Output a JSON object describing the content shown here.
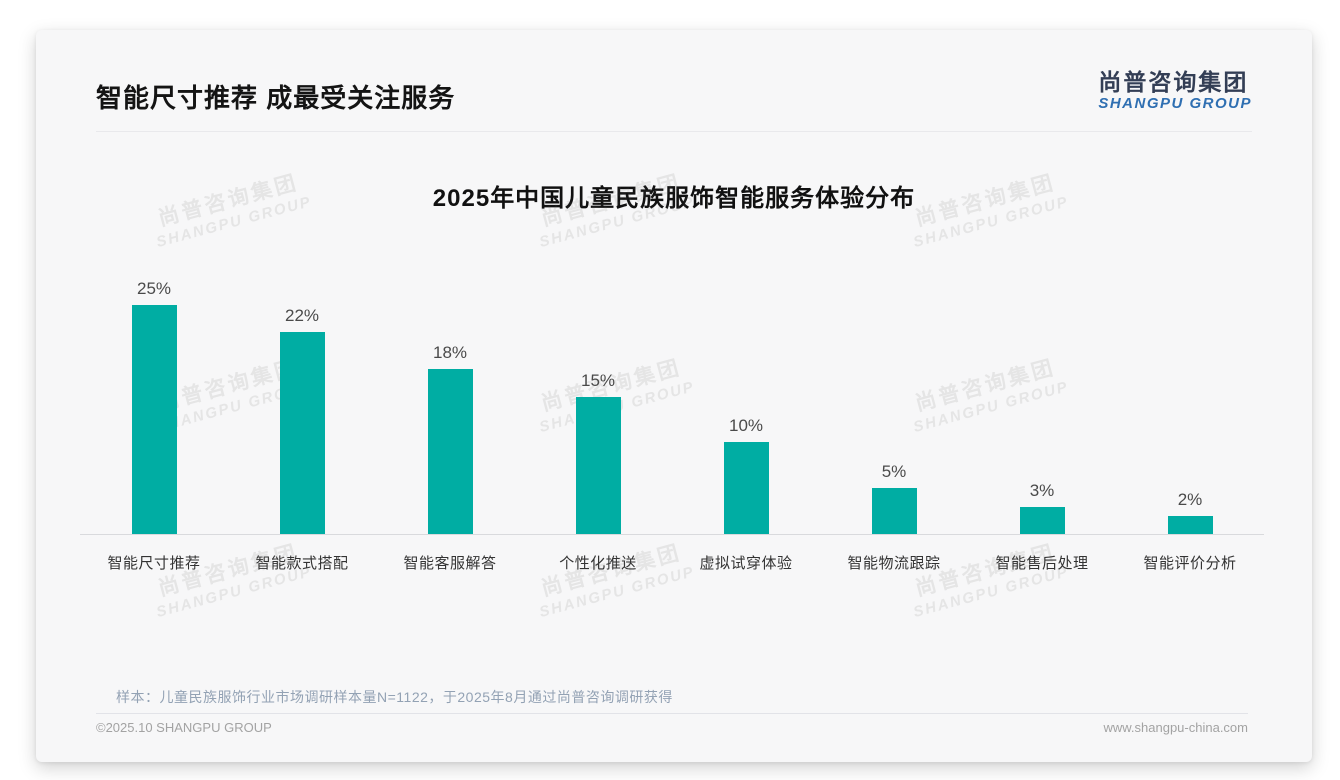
{
  "page": {
    "title": "智能尺寸推荐 成最受关注服务",
    "logo": {
      "cn": "尚普咨询集团",
      "en": "SHANGPU GROUP"
    },
    "watermark": {
      "cn": "尚普咨询集团",
      "en": "SHANGPU GROUP"
    },
    "note": "样本：儿童民族服饰行业市场调研样本量N=1122，于2025年8月通过尚普咨询调研获得",
    "footer_left": "©2025.10 SHANGPU GROUP",
    "footer_right": "www.shangpu-china.com"
  },
  "chart_data": {
    "type": "bar",
    "title": "2025年中国儿童民族服饰智能服务体验分布",
    "categories": [
      "智能尺寸推荐",
      "智能款式搭配",
      "智能客服解答",
      "个性化推送",
      "虚拟试穿体验",
      "智能物流跟踪",
      "智能售后处理",
      "智能评价分析"
    ],
    "values": [
      25,
      22,
      18,
      15,
      10,
      5,
      3,
      2
    ],
    "unit": "%",
    "data_labels": [
      "25%",
      "22%",
      "18%",
      "15%",
      "10%",
      "5%",
      "3%",
      "2%"
    ],
    "bar_color": "#00ada3",
    "value_label_color": "#4a4a4a",
    "ylim": [
      0,
      27
    ],
    "grid": false,
    "legend": false,
    "xlabel": "",
    "ylabel": ""
  }
}
